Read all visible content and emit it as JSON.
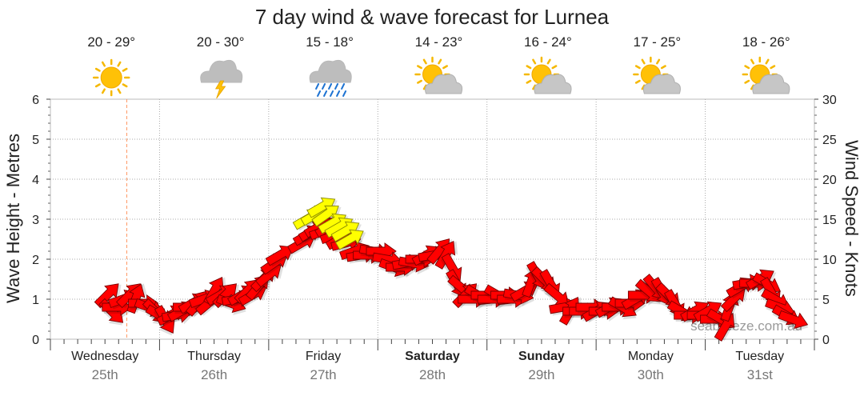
{
  "title": "7 day wind & wave forecast for Lurnea",
  "watermark": "seabreeze.com.au",
  "days": [
    {
      "name": "Wednesday",
      "date": "25th",
      "temp": "20 - 29°",
      "icon": "sunny-icon",
      "bold": false
    },
    {
      "name": "Thursday",
      "date": "26th",
      "temp": "20 - 30°",
      "icon": "thunderstorm-icon",
      "bold": false
    },
    {
      "name": "Friday",
      "date": "27th",
      "temp": "15 - 18°",
      "icon": "rain-icon",
      "bold": false
    },
    {
      "name": "Saturday",
      "date": "28th",
      "temp": "14 - 23°",
      "icon": "partly-cloudy-icon",
      "bold": true
    },
    {
      "name": "Sunday",
      "date": "29th",
      "temp": "16 - 24°",
      "icon": "partly-cloudy-icon",
      "bold": true
    },
    {
      "name": "Monday",
      "date": "30th",
      "temp": "17 - 25°",
      "icon": "partly-cloudy-icon",
      "bold": false
    },
    {
      "name": "Tuesday",
      "date": "31st",
      "temp": "18 - 26°",
      "icon": "partly-cloudy-icon",
      "bold": false
    }
  ],
  "chart_data": {
    "type": "line",
    "title": "7 day wind & wave forecast for Lurnea",
    "x_unit": "days from Wednesday 25th 00:00",
    "y_left": {
      "label": "Wave Height - Metres",
      "ylim": [
        0,
        6
      ],
      "ticks": [
        "0",
        "1",
        "2",
        "3",
        "4",
        "5",
        "6"
      ]
    },
    "y_right": {
      "label": "Wind Speed - Knots",
      "ylim": [
        0,
        30
      ],
      "ticks": [
        "0",
        "5",
        "10",
        "15",
        "20",
        "25",
        "30"
      ]
    },
    "grid": true,
    "now_marker_day": 0.7,
    "colors": {
      "wind_normal": "#ff0000",
      "wind_strong": "#ffff00",
      "grid": "#aaaaaa",
      "now_line": "#ff9966"
    },
    "wind_series": {
      "name": "Wind",
      "points": [
        {
          "d": 0.52,
          "kts": 5.5,
          "dir": 45
        },
        {
          "d": 0.56,
          "kts": 3.5,
          "dir": 135
        },
        {
          "d": 0.6,
          "kts": 4.0,
          "dir": 90
        },
        {
          "d": 0.66,
          "kts": 5.0,
          "dir": 70
        },
        {
          "d": 0.72,
          "kts": 5.5,
          "dir": 45
        },
        {
          "d": 0.78,
          "kts": 5.0,
          "dir": 20
        },
        {
          "d": 0.84,
          "kts": 4.5,
          "dir": 90
        },
        {
          "d": 0.9,
          "kts": 4.0,
          "dir": 110
        },
        {
          "d": 0.96,
          "kts": 3.5,
          "dir": 135
        },
        {
          "d": 1.0,
          "kts": 3.0,
          "dir": 120
        },
        {
          "d": 1.05,
          "kts": 2.5,
          "dir": 150
        },
        {
          "d": 1.1,
          "kts": 3.0,
          "dir": 60
        },
        {
          "d": 1.15,
          "kts": 3.0,
          "dir": 80
        },
        {
          "d": 1.2,
          "kts": 3.5,
          "dir": 60
        },
        {
          "d": 1.25,
          "kts": 4.0,
          "dir": 90
        },
        {
          "d": 1.3,
          "kts": 4.5,
          "dir": 60
        },
        {
          "d": 1.35,
          "kts": 4.5,
          "dir": 40
        },
        {
          "d": 1.4,
          "kts": 5.0,
          "dir": 70
        },
        {
          "d": 1.45,
          "kts": 4.5,
          "dir": 50
        },
        {
          "d": 1.5,
          "kts": 6.0,
          "dir": 30
        },
        {
          "d": 1.55,
          "kts": 5.5,
          "dir": 60
        },
        {
          "d": 1.6,
          "kts": 5.5,
          "dir": 45
        },
        {
          "d": 1.65,
          "kts": 4.5,
          "dir": 110
        },
        {
          "d": 1.7,
          "kts": 5.0,
          "dir": 80
        },
        {
          "d": 1.75,
          "kts": 5.5,
          "dir": 60
        },
        {
          "d": 1.8,
          "kts": 6.0,
          "dir": 45
        },
        {
          "d": 1.85,
          "kts": 5.5,
          "dir": 60
        },
        {
          "d": 1.9,
          "kts": 6.5,
          "dir": 40
        },
        {
          "d": 1.95,
          "kts": 7.5,
          "dir": 45
        },
        {
          "d": 2.0,
          "kts": 8.0,
          "dir": 50
        },
        {
          "d": 2.05,
          "kts": 9.5,
          "dir": 55
        },
        {
          "d": 2.1,
          "kts": 10.5,
          "dir": 60
        },
        {
          "d": 2.3,
          "kts": 12.0,
          "dir": 60
        },
        {
          "d": 2.35,
          "kts": 13.0,
          "dir": 60
        },
        {
          "d": 2.4,
          "kts": 13.5,
          "dir": 60
        },
        {
          "d": 2.45,
          "kts": 14.0,
          "dir": 60
        },
        {
          "d": 2.5,
          "kts": 13.5,
          "dir": 70
        },
        {
          "d": 2.55,
          "kts": 14.0,
          "dir": 60
        },
        {
          "d": 2.6,
          "kts": 13.0,
          "dir": 70
        },
        {
          "d": 2.65,
          "kts": 12.5,
          "dir": 60
        },
        {
          "d": 2.7,
          "kts": 12.0,
          "dir": 75
        },
        {
          "d": 2.78,
          "kts": 11.0,
          "dir": 70
        },
        {
          "d": 2.84,
          "kts": 10.5,
          "dir": 80
        },
        {
          "d": 2.9,
          "kts": 10.5,
          "dir": 90
        },
        {
          "d": 2.96,
          "kts": 11.0,
          "dir": 100
        },
        {
          "d": 3.02,
          "kts": 11.0,
          "dir": 90
        },
        {
          "d": 3.08,
          "kts": 10.0,
          "dir": 100
        },
        {
          "d": 3.14,
          "kts": 9.0,
          "dir": 110
        },
        {
          "d": 3.2,
          "kts": 9.0,
          "dir": 90
        },
        {
          "d": 3.26,
          "kts": 9.5,
          "dir": 80
        },
        {
          "d": 3.32,
          "kts": 9.5,
          "dir": 100
        },
        {
          "d": 3.38,
          "kts": 10.0,
          "dir": 90
        },
        {
          "d": 3.44,
          "kts": 10.5,
          "dir": 60
        },
        {
          "d": 3.5,
          "kts": 10.5,
          "dir": 80
        },
        {
          "d": 3.56,
          "kts": 11.0,
          "dir": 40
        },
        {
          "d": 3.62,
          "kts": 10.5,
          "dir": 30
        },
        {
          "d": 3.68,
          "kts": 9.0,
          "dir": 150
        },
        {
          "d": 3.72,
          "kts": 7.0,
          "dir": 150
        },
        {
          "d": 3.76,
          "kts": 6.5,
          "dir": 130
        },
        {
          "d": 3.8,
          "kts": 5.5,
          "dir": 45
        },
        {
          "d": 3.86,
          "kts": 5.0,
          "dir": 90
        },
        {
          "d": 3.92,
          "kts": 5.5,
          "dir": 120
        },
        {
          "d": 3.98,
          "kts": 5.5,
          "dir": 90
        },
        {
          "d": 4.04,
          "kts": 5.0,
          "dir": 90
        },
        {
          "d": 4.1,
          "kts": 5.5,
          "dir": 120
        },
        {
          "d": 4.16,
          "kts": 5.5,
          "dir": 90
        },
        {
          "d": 4.22,
          "kts": 5.0,
          "dir": 90
        },
        {
          "d": 4.28,
          "kts": 5.5,
          "dir": 100
        },
        {
          "d": 4.34,
          "kts": 6.0,
          "dir": 60
        },
        {
          "d": 4.4,
          "kts": 7.0,
          "dir": 20
        },
        {
          "d": 4.46,
          "kts": 8.0,
          "dir": 150
        },
        {
          "d": 4.52,
          "kts": 7.5,
          "dir": 135
        },
        {
          "d": 4.58,
          "kts": 7.0,
          "dir": 150
        },
        {
          "d": 4.64,
          "kts": 5.5,
          "dir": 130
        },
        {
          "d": 4.7,
          "kts": 4.0,
          "dir": 80
        },
        {
          "d": 4.76,
          "kts": 3.5,
          "dir": 30
        },
        {
          "d": 4.82,
          "kts": 3.5,
          "dir": 90
        },
        {
          "d": 4.88,
          "kts": 3.5,
          "dir": 90
        },
        {
          "d": 4.94,
          "kts": 4.0,
          "dir": 90
        },
        {
          "d": 5.0,
          "kts": 3.5,
          "dir": 60
        },
        {
          "d": 5.06,
          "kts": 3.5,
          "dir": 90
        },
        {
          "d": 5.12,
          "kts": 4.0,
          "dir": 60
        },
        {
          "d": 5.18,
          "kts": 4.0,
          "dir": 90
        },
        {
          "d": 5.24,
          "kts": 4.0,
          "dir": 120
        },
        {
          "d": 5.3,
          "kts": 4.5,
          "dir": 90
        },
        {
          "d": 5.36,
          "kts": 5.0,
          "dir": 60
        },
        {
          "d": 5.42,
          "kts": 5.5,
          "dir": 90
        },
        {
          "d": 5.48,
          "kts": 6.0,
          "dir": 130
        },
        {
          "d": 5.54,
          "kts": 6.5,
          "dir": 140
        },
        {
          "d": 5.6,
          "kts": 6.0,
          "dir": 150
        },
        {
          "d": 5.66,
          "kts": 5.5,
          "dir": 135
        },
        {
          "d": 5.72,
          "kts": 4.5,
          "dir": 150
        },
        {
          "d": 5.78,
          "kts": 3.5,
          "dir": 120
        },
        {
          "d": 5.84,
          "kts": 3.0,
          "dir": 90
        },
        {
          "d": 5.9,
          "kts": 3.5,
          "dir": 60
        },
        {
          "d": 5.96,
          "kts": 3.0,
          "dir": 90
        },
        {
          "d": 6.02,
          "kts": 3.5,
          "dir": 60
        },
        {
          "d": 6.08,
          "kts": 2.5,
          "dir": 90
        },
        {
          "d": 6.14,
          "kts": 2.5,
          "dir": 120
        },
        {
          "d": 6.18,
          "kts": 1.5,
          "dir": 30
        },
        {
          "d": 6.22,
          "kts": 4.0,
          "dir": 20
        },
        {
          "d": 6.26,
          "kts": 5.0,
          "dir": 45
        },
        {
          "d": 6.32,
          "kts": 6.5,
          "dir": 60
        },
        {
          "d": 6.38,
          "kts": 7.0,
          "dir": 80
        },
        {
          "d": 6.44,
          "kts": 7.0,
          "dir": 90
        },
        {
          "d": 6.5,
          "kts": 7.5,
          "dir": 60
        },
        {
          "d": 6.56,
          "kts": 7.0,
          "dir": 120
        },
        {
          "d": 6.6,
          "kts": 6.0,
          "dir": 150
        },
        {
          "d": 6.64,
          "kts": 5.0,
          "dir": 120
        },
        {
          "d": 6.68,
          "kts": 4.0,
          "dir": 110
        },
        {
          "d": 6.74,
          "kts": 3.0,
          "dir": 120
        },
        {
          "d": 6.8,
          "kts": 2.5,
          "dir": 110
        }
      ]
    },
    "strong_wind_series": {
      "name": "Strong wind",
      "points": [
        {
          "d": 2.35,
          "kts": 15.0,
          "dir": 60
        },
        {
          "d": 2.42,
          "kts": 15.5,
          "dir": 60
        },
        {
          "d": 2.48,
          "kts": 16.5,
          "dir": 60
        },
        {
          "d": 2.52,
          "kts": 15.5,
          "dir": 55
        },
        {
          "d": 2.58,
          "kts": 14.5,
          "dir": 60
        },
        {
          "d": 2.64,
          "kts": 14.0,
          "dir": 60
        },
        {
          "d": 2.7,
          "kts": 13.5,
          "dir": 60
        },
        {
          "d": 2.74,
          "kts": 12.5,
          "dir": 60
        }
      ]
    }
  }
}
